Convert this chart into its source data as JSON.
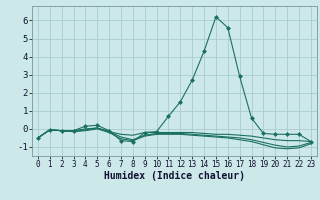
{
  "xlabel": "Humidex (Indice chaleur)",
  "background_color": "#cce8e8",
  "grid_color": "#aacccc",
  "line_color": "#1a7060",
  "xlim": [
    -0.5,
    23.5
  ],
  "ylim": [
    -1.5,
    6.8
  ],
  "xticks": [
    0,
    1,
    2,
    3,
    4,
    5,
    6,
    7,
    8,
    9,
    10,
    11,
    12,
    13,
    14,
    15,
    16,
    17,
    18,
    19,
    20,
    21,
    22,
    23
  ],
  "yticks": [
    -1,
    0,
    1,
    2,
    3,
    4,
    5,
    6
  ],
  "series": [
    {
      "x": [
        0,
        1,
        2,
        3,
        4,
        5,
        6,
        7,
        8,
        9,
        10,
        11,
        12,
        13,
        14,
        15,
        16,
        17,
        18,
        19,
        20,
        21,
        22,
        23
      ],
      "y": [
        -0.5,
        -0.05,
        -0.1,
        -0.1,
        0.15,
        0.2,
        -0.1,
        -0.65,
        -0.7,
        -0.2,
        -0.15,
        0.7,
        1.5,
        2.7,
        4.3,
        6.2,
        5.6,
        2.9,
        0.6,
        -0.25,
        -0.3,
        -0.3,
        -0.3,
        -0.7
      ],
      "marker": "D",
      "markersize": 2.0
    },
    {
      "x": [
        0,
        1,
        2,
        3,
        4,
        5,
        6,
        7,
        8,
        9,
        10,
        11,
        12,
        13,
        14,
        15,
        16,
        17,
        18,
        19,
        20,
        21,
        22,
        23
      ],
      "y": [
        -0.5,
        -0.05,
        -0.1,
        -0.1,
        0.0,
        0.05,
        -0.15,
        -0.3,
        -0.35,
        -0.2,
        -0.2,
        -0.2,
        -0.2,
        -0.2,
        -0.25,
        -0.3,
        -0.3,
        -0.35,
        -0.4,
        -0.5,
        -0.6,
        -0.65,
        -0.65,
        -0.7
      ],
      "marker": null,
      "markersize": 0
    },
    {
      "x": [
        0,
        1,
        2,
        3,
        4,
        5,
        6,
        7,
        8,
        9,
        10,
        11,
        12,
        13,
        14,
        15,
        16,
        17,
        18,
        19,
        20,
        21,
        22,
        23
      ],
      "y": [
        -0.5,
        -0.05,
        -0.1,
        -0.15,
        -0.05,
        0.05,
        -0.15,
        -0.45,
        -0.6,
        -0.35,
        -0.25,
        -0.25,
        -0.25,
        -0.3,
        -0.35,
        -0.4,
        -0.45,
        -0.5,
        -0.6,
        -0.75,
        -0.9,
        -1.0,
        -0.95,
        -0.75
      ],
      "marker": null,
      "markersize": 0
    },
    {
      "x": [
        0,
        1,
        2,
        3,
        4,
        5,
        6,
        7,
        8,
        9,
        10,
        11,
        12,
        13,
        14,
        15,
        16,
        17,
        18,
        19,
        20,
        21,
        22,
        23
      ],
      "y": [
        -0.5,
        -0.05,
        -0.1,
        -0.15,
        -0.1,
        0.0,
        -0.2,
        -0.55,
        -0.65,
        -0.4,
        -0.3,
        -0.3,
        -0.3,
        -0.35,
        -0.4,
        -0.45,
        -0.5,
        -0.6,
        -0.7,
        -0.88,
        -1.05,
        -1.1,
        -1.05,
        -0.82
      ],
      "marker": null,
      "markersize": 0
    }
  ]
}
